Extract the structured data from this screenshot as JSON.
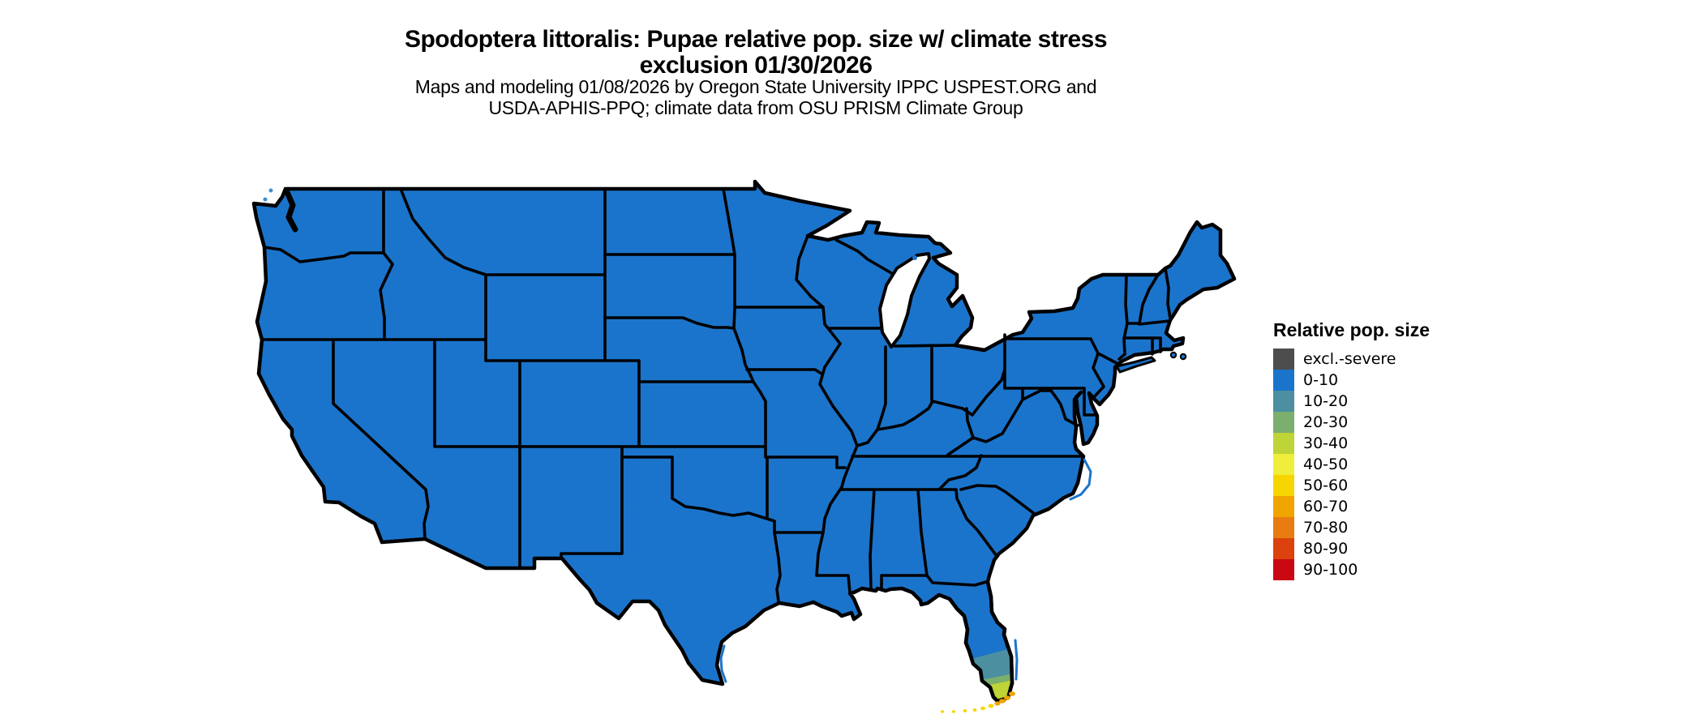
{
  "page": {
    "background": "#ffffff"
  },
  "title": {
    "line1": "Spodoptera littoralis: Pupae relative pop. size w/ climate stress",
    "line2": "exclusion 01/30/2026"
  },
  "subtitle": {
    "line1": "Maps and modeling 01/08/2026 by Oregon State University IPPC USPEST.ORG and",
    "line2": "USDA-APHIS-PPQ; climate data from OSU PRISM Climate Group"
  },
  "legend": {
    "title": "Relative pop. size",
    "items": [
      {
        "label": "excl.-severe",
        "color": "#4d4d4d"
      },
      {
        "label": "0-10",
        "color": "#1b74cb"
      },
      {
        "label": "10-20",
        "color": "#4c8fa0"
      },
      {
        "label": "20-30",
        "color": "#7cae6e"
      },
      {
        "label": "30-40",
        "color": "#bed437"
      },
      {
        "label": "40-50",
        "color": "#efee3a"
      },
      {
        "label": "50-60",
        "color": "#f7d500"
      },
      {
        "label": "60-70",
        "color": "#f0a400"
      },
      {
        "label": "70-80",
        "color": "#e87c10"
      },
      {
        "label": "80-90",
        "color": "#db420d"
      },
      {
        "label": "90-100",
        "color": "#c90812"
      }
    ]
  },
  "map": {
    "type": "choropleth",
    "region": "Contiguous United States",
    "border_color": "#000000",
    "water_color": "#ffffff",
    "dominant_class": "0-10",
    "anomalies": {
      "south_florida_bands": [
        "10-20",
        "20-30",
        "30-40"
      ],
      "florida_keys_classes": [
        "50-60",
        "60-70"
      ]
    }
  }
}
